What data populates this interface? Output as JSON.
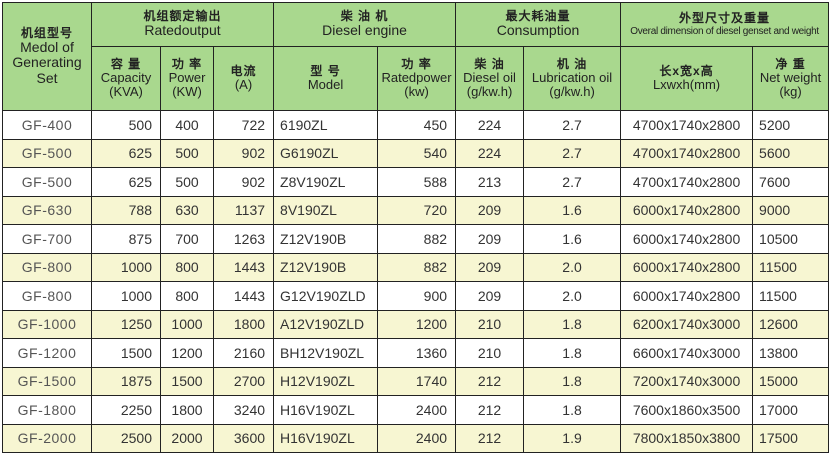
{
  "headers": {
    "model": {
      "zh": "机组型号",
      "en": "Medol of Generating Set"
    },
    "rated_output": {
      "zh": "机组额定输出",
      "en": "Ratedoutput"
    },
    "diesel_engine": {
      "zh": "柴 油 机",
      "en": "Diesel engine"
    },
    "consumption": {
      "zh": "最大耗油量",
      "en": "Consumption"
    },
    "dimension": {
      "zh": "外型尺寸及重量",
      "en": "Overal dimension of diesel genset and weight"
    },
    "capacity": {
      "zh": "容 量",
      "en": "Capacity",
      "unit": "(KVA)"
    },
    "power": {
      "zh": "功 率",
      "en": "Power",
      "unit": "(KW)"
    },
    "current": {
      "zh": "电流",
      "unit": "(A)"
    },
    "engine_model": {
      "zh": "型 号",
      "en": "Model"
    },
    "rated_power": {
      "zh": "功 率",
      "en": "Ratedpower",
      "unit": "(kw)"
    },
    "diesel_oil": {
      "zh": "柴 油",
      "en": "Diesel oil",
      "unit": "(g/kw.h)"
    },
    "lub_oil": {
      "zh": "机 油",
      "en": "Lubrication oil",
      "unit": "(g/kw.h)"
    },
    "lwh": {
      "zh": "长x宽x高",
      "en": "Lxwxh(mm)"
    },
    "weight": {
      "zh": "净 重",
      "en": "Net weight",
      "unit": "(kg)"
    }
  },
  "rows": [
    [
      "GF-400",
      "500",
      "400",
      "722",
      "6190ZL",
      "450",
      "224",
      "2.7",
      "4700x1740x2800",
      "5200"
    ],
    [
      "GF-500",
      "625",
      "500",
      "902",
      "G6190ZL",
      "540",
      "224",
      "2.7",
      "4700x1740x2800",
      "5600"
    ],
    [
      "GF-500",
      "625",
      "500",
      "902",
      "Z8V190ZL",
      "588",
      "213",
      "2.7",
      "4700x1740x2800",
      "7600"
    ],
    [
      "GF-630",
      "788",
      "630",
      "1137",
      "8V190ZL",
      "720",
      "209",
      "1.6",
      "6000x1740x2800",
      "9000"
    ],
    [
      "GF-700",
      "875",
      "700",
      "1263",
      "Z12V190B",
      "882",
      "209",
      "1.6",
      "6000x1740x2800",
      "10500"
    ],
    [
      "GF-800",
      "1000",
      "800",
      "1443",
      "Z12V190B",
      "882",
      "209",
      "2.0",
      "6000x1740x2800",
      "11500"
    ],
    [
      "GF-800",
      "1000",
      "800",
      "1443",
      "G12V190ZLD",
      "900",
      "209",
      "2.0",
      "6000x1740x2800",
      "11500"
    ],
    [
      "GF-1000",
      "1250",
      "1000",
      "1800",
      "A12V190ZLD",
      "1200",
      "210",
      "1.8",
      "6200x1740x3000",
      "12600"
    ],
    [
      "GF-1200",
      "1500",
      "1200",
      "2160",
      "BH12V190ZL",
      "1360",
      "210",
      "1.8",
      "6600x1740x3000",
      "13800"
    ],
    [
      "GF-1500",
      "1875",
      "1500",
      "2700",
      "H12V190ZL",
      "1740",
      "212",
      "1.8",
      "7200x1740x3000",
      "15000"
    ],
    [
      "GF-1800",
      "2250",
      "1800",
      "3240",
      "H16V190ZL",
      "2400",
      "212",
      "1.8",
      "7600x1860x3500",
      "17000"
    ],
    [
      "GF-2000",
      "2500",
      "2000",
      "3600",
      "H16V190ZL",
      "2400",
      "212",
      "1.9",
      "7800x1850x3800",
      "17500"
    ]
  ],
  "colors": {
    "header": "#a9d88e",
    "alt_row": "#f7f6d2"
  }
}
